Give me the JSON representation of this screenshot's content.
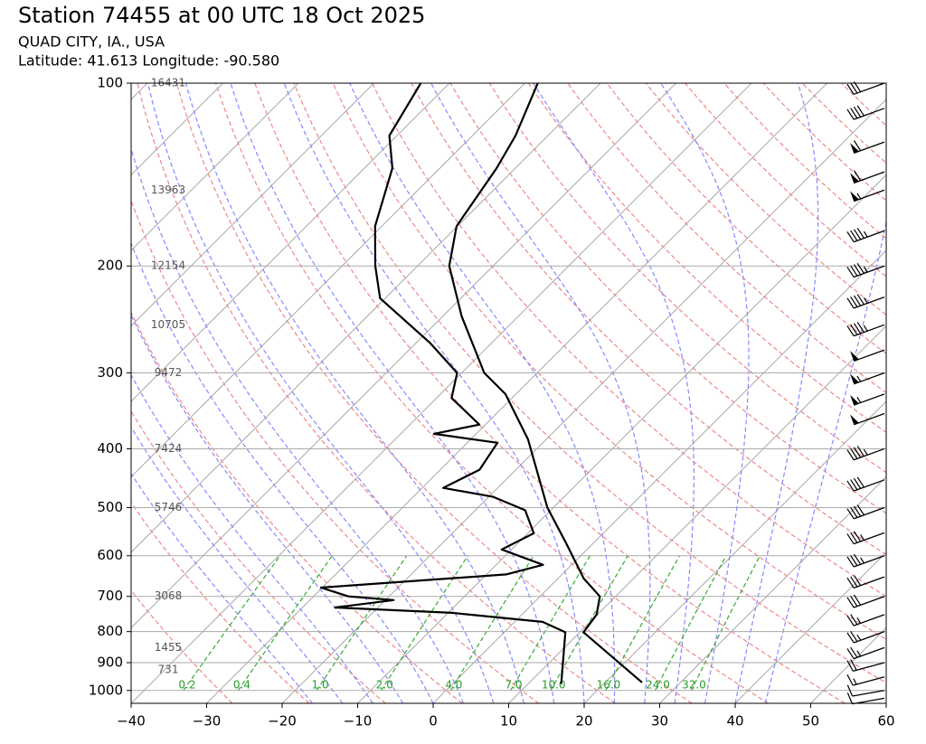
{
  "chart_data": {
    "type": "skewt",
    "title": "Station 74455 at 00 UTC 18 Oct 2025",
    "subtitle": "QUAD CITY, IA., USA",
    "location": "Latitude: 41.613 Longitude: -90.580",
    "xlim": [
      -40,
      60
    ],
    "ylim": [
      1050,
      100
    ],
    "log_scale_y": true,
    "xticks": [
      {
        "value": -40,
        "label": "−40"
      },
      {
        "value": -30,
        "label": "−30"
      },
      {
        "value": -20,
        "label": "−20"
      },
      {
        "value": -10,
        "label": "−10"
      },
      0,
      10,
      20,
      30,
      40,
      50,
      60
    ],
    "yticks": [
      1000,
      900,
      800,
      700,
      600,
      500,
      400,
      300,
      200,
      100
    ],
    "grid": true,
    "pressure_t": [
      970,
      802,
      750,
      700,
      654,
      570,
      500,
      386,
      325,
      300,
      242,
      200,
      172,
      138,
      122,
      100
    ],
    "temperature": [
      24.9,
      10.5,
      9.9,
      7.9,
      3.4,
      -3.8,
      -10.8,
      -22.4,
      -31.4,
      -37,
      -47.5,
      -55.8,
      -60.1,
      -62.5,
      -64.3,
      -68.3
    ],
    "temperature_color": "#000000",
    "pressure_td": [
      976,
      802,
      771,
      745,
      730,
      710,
      700,
      677,
      644,
      621,
      586,
      551,
      505,
      480,
      464,
      433,
      391,
      378,
      365,
      330,
      300,
      268,
      226,
      200,
      172,
      138,
      122,
      100
    ],
    "dewpoint": [
      14.4,
      8.1,
      3.7,
      -9.5,
      -25.7,
      -18.9,
      -25.4,
      -30.2,
      -7.4,
      -3.8,
      -11.3,
      -9.2,
      -13.4,
      -19.4,
      -27.2,
      -24.8,
      -26,
      -35.6,
      -30.8,
      -38,
      -40.6,
      -48.1,
      -60.7,
      -65.6,
      -70.9,
      -76.3,
      -81,
      -83.8
    ],
    "dewpoint_color": "#000000",
    "heights": {
      "pressures": [
        100,
        150,
        200,
        250,
        300,
        400,
        500,
        700,
        850,
        925
      ],
      "values": [
        16431,
        13963,
        12154,
        10705,
        9472,
        7424,
        5746,
        3068,
        1455,
        731
      ]
    },
    "mixing_ratios": [
      {
        "value": 0.2,
        "label": "0.2"
      },
      {
        "value": 0.4,
        "label": "0.4"
      },
      {
        "value": 1,
        "label": "1.0"
      },
      {
        "value": 2,
        "label": "2.0"
      },
      {
        "value": 4,
        "label": "4.0"
      },
      {
        "value": 7,
        "label": "7.0"
      },
      {
        "value": 10,
        "label": "10.0"
      },
      {
        "value": 16,
        "label": "16.0"
      },
      {
        "value": 24,
        "label": "24.0"
      },
      {
        "value": 32,
        "label": "32.0"
      }
    ],
    "wind": {
      "pressure": [
        1030,
        1000,
        950,
        900,
        850,
        800,
        750,
        700,
        650,
        600,
        550,
        500,
        450,
        400,
        350,
        325,
        300,
        275,
        250,
        225,
        200,
        175,
        150,
        140,
        125,
        110,
        100
      ],
      "speed": [
        10,
        10,
        15,
        20,
        25,
        25,
        25,
        30,
        30,
        35,
        35,
        40,
        40,
        45,
        50,
        55,
        55,
        50,
        45,
        45,
        45,
        45,
        55,
        60,
        60,
        40,
        30
      ],
      "direction": [
        260,
        260,
        255,
        255,
        250,
        250,
        250,
        250,
        250,
        250,
        250,
        250,
        250,
        250,
        250,
        250,
        250,
        250,
        250,
        250,
        250,
        250,
        250,
        250,
        250,
        250,
        250
      ]
    }
  }
}
